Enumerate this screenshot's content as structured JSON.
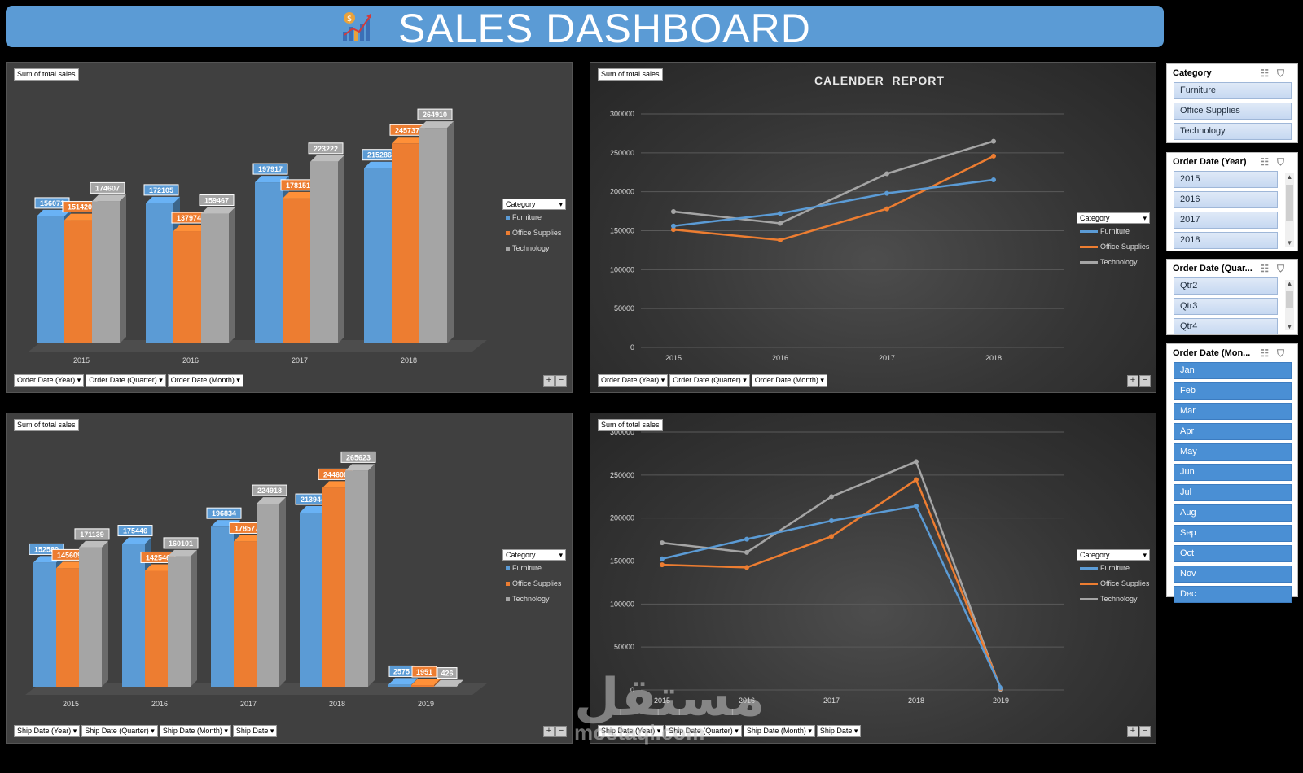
{
  "dashboard": {
    "title": "SALES DASHBOARD"
  },
  "colors": {
    "furniture": "#5b9bd5",
    "office": "#ed7d31",
    "technology": "#a5a5a5",
    "banner": "#5b9bd5"
  },
  "panels": {
    "tl": {
      "label": "Sum of total sales",
      "buttons": [
        "Order Date (Year)",
        "Order Date (Quarter)",
        "Order Date (Month)"
      ],
      "legend_title": "Category"
    },
    "tr": {
      "label": "Sum of total sales",
      "buttons": [
        "Order Date (Year)",
        "Order Date (Quarter)",
        "Order Date (Month)"
      ],
      "legend_title": "Category"
    },
    "bl": {
      "label": "Sum of total sales",
      "buttons": [
        "Ship Date (Year)",
        "Ship Date (Quarter)",
        "Ship Date (Month)",
        "Ship Date"
      ],
      "legend_title": "Category"
    },
    "br": {
      "label": "Sum of total sales",
      "buttons": [
        "Ship Date (Year)",
        "Ship Date (Quarter)",
        "Ship Date (Month)",
        "Ship Date"
      ],
      "legend_title": "Category"
    },
    "pm": [
      "+",
      "−"
    ]
  },
  "chart_data": [
    {
      "type": "bar",
      "categories": [
        "2015",
        "2016",
        "2017",
        "2018"
      ],
      "series": [
        {
          "name": "Furniture",
          "values": [
            156071,
            172105,
            197917,
            215286
          ]
        },
        {
          "name": "Office Supplies",
          "values": [
            151420,
            137974,
            178151,
            245737
          ]
        },
        {
          "name": "Technology",
          "values": [
            174607,
            159467,
            223222,
            264910
          ]
        }
      ],
      "title": "",
      "legend": "right",
      "grid": false
    },
    {
      "type": "line",
      "categories": [
        "2015",
        "2016",
        "2017",
        "2018"
      ],
      "series": [
        {
          "name": "Furniture",
          "values": [
            156071,
            172105,
            197917,
            215286
          ]
        },
        {
          "name": "Office Supplies",
          "values": [
            151420,
            137974,
            178151,
            245737
          ]
        },
        {
          "name": "Technology",
          "values": [
            174607,
            159467,
            223222,
            264910
          ]
        }
      ],
      "title": "CALENDER  REPORT",
      "yticks": [
        "300000",
        "250000",
        "200000",
        "150000",
        "100000",
        "50000",
        "0"
      ],
      "ylim": [
        0,
        300000
      ],
      "legend": "right",
      "grid": true
    },
    {
      "type": "bar",
      "categories": [
        "2015",
        "2016",
        "2017",
        "2018",
        "2019"
      ],
      "series": [
        {
          "name": "Furniture",
          "values": [
            152580,
            175446,
            196834,
            213944,
            2575
          ]
        },
        {
          "name": "Office Supplies",
          "values": [
            145609,
            142546,
            178577,
            244600,
            1951
          ]
        },
        {
          "name": "Technology",
          "values": [
            171139,
            160101,
            224918,
            265623,
            426
          ]
        }
      ],
      "title": "",
      "legend": "right",
      "grid": false
    },
    {
      "type": "line",
      "categories": [
        "2015",
        "2016",
        "2017",
        "2018",
        "2019"
      ],
      "series": [
        {
          "name": "Furniture",
          "values": [
            152580,
            175446,
            196834,
            213944,
            2575
          ]
        },
        {
          "name": "Office Supplies",
          "values": [
            145609,
            142546,
            178577,
            244600,
            1951
          ]
        },
        {
          "name": "Technology",
          "values": [
            171139,
            160101,
            224918,
            265623,
            426
          ]
        }
      ],
      "title": "",
      "yticks": [
        "300000",
        "250000",
        "200000",
        "150000",
        "100000",
        "50000",
        "0"
      ],
      "ylim": [
        0,
        300000
      ],
      "legend": "right",
      "grid": true
    }
  ],
  "slicers": {
    "category": {
      "title": "Category",
      "items": [
        "Furniture",
        "Office Supplies",
        "Technology"
      ]
    },
    "year": {
      "title": "Order Date (Year)",
      "items": [
        "2015",
        "2016",
        "2017",
        "2018"
      ]
    },
    "quarter": {
      "title": "Order Date (Quar...",
      "items": [
        "Qtr2",
        "Qtr3",
        "Qtr4"
      ]
    },
    "month": {
      "title": "Order Date (Mon...",
      "items": [
        "Jan",
        "Feb",
        "Mar",
        "Apr",
        "May",
        "Jun",
        "Jul",
        "Aug",
        "Sep",
        "Oct",
        "Nov",
        "Dec"
      ]
    }
  },
  "watermark": {
    "arabic": "مستقل",
    "latin": "mostaql.com"
  }
}
